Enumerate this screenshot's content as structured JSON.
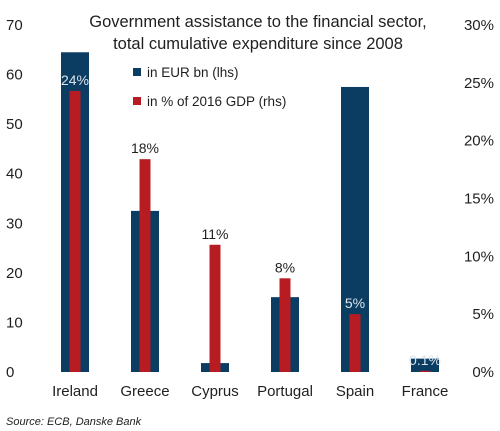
{
  "chart_data": {
    "type": "bar",
    "title_lines": [
      "Government assistance to the financial sector,",
      "total cumulative expenditure since 2008"
    ],
    "categories": [
      "Ireland",
      "Greece",
      "Cyprus",
      "Portugal",
      "Spain",
      "France"
    ],
    "series": [
      {
        "name": "in EUR bn (lhs)",
        "axis": "left",
        "color": "#0b3d63",
        "values": [
          64.5,
          32.5,
          1.8,
          15.1,
          57.5,
          2.7
        ]
      },
      {
        "name": "in % of 2016 GDP (rhs)",
        "axis": "right",
        "color": "#b81c23",
        "values": [
          24.3,
          18.4,
          11.0,
          8.1,
          5.0,
          0.1
        ],
        "data_labels": [
          "24%",
          "18%",
          "11%",
          "8%",
          "5%",
          "0.1%"
        ]
      }
    ],
    "left_axis": {
      "ylim": [
        0,
        70
      ],
      "ticks": [
        0,
        10,
        20,
        30,
        40,
        50,
        60,
        70
      ],
      "tick_labels": [
        "0",
        "10",
        "20",
        "30",
        "40",
        "50",
        "60",
        "70"
      ]
    },
    "right_axis": {
      "ylim": [
        0,
        30
      ],
      "ticks": [
        0,
        5,
        10,
        15,
        20,
        25,
        30
      ],
      "tick_labels": [
        "0%",
        "5%",
        "10%",
        "15%",
        "20%",
        "25%",
        "30%"
      ]
    },
    "legend_position": "top-center",
    "grid": false
  },
  "source": "Source: ECB, Danske Bank"
}
